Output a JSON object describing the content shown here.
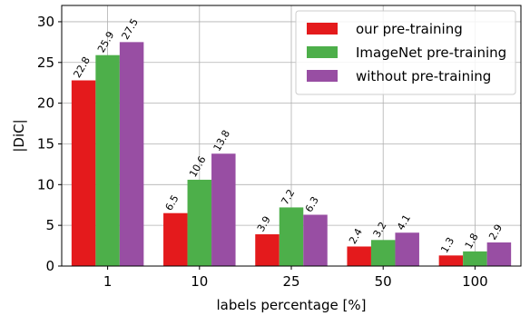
{
  "chart_data": {
    "type": "bar",
    "title": "",
    "xlabel": "labels percentage [%]",
    "ylabel": "|DiC|",
    "categories": [
      "1",
      "10",
      "25",
      "50",
      "100"
    ],
    "ylim": [
      0,
      32
    ],
    "yticks": [
      0,
      5,
      10,
      15,
      20,
      25,
      30
    ],
    "grid": true,
    "legend_position": "top-right",
    "series": [
      {
        "name": "our pre-training",
        "color": "#e41a1c",
        "values": [
          22.8,
          6.5,
          3.9,
          2.4,
          1.3
        ]
      },
      {
        "name": "ImageNet pre-training",
        "color": "#4daf4a",
        "values": [
          25.9,
          10.6,
          7.2,
          3.2,
          1.8
        ]
      },
      {
        "name": "without pre-training",
        "color": "#984ea3",
        "values": [
          27.5,
          13.8,
          6.3,
          4.1,
          2.9
        ]
      }
    ]
  }
}
